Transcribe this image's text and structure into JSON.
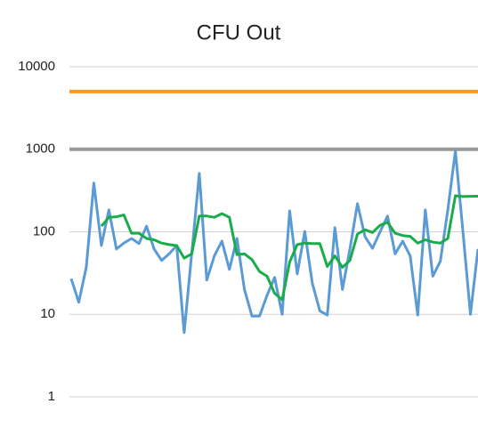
{
  "chart_data": {
    "type": "line",
    "title": "CFU Out",
    "log_scale": true,
    "grid": true,
    "ylim": [
      1,
      10000
    ],
    "yticks": [
      1,
      10,
      100,
      1000,
      10000
    ],
    "reference_lines": [
      {
        "value": 5000,
        "color": "#f59a23"
      },
      {
        "value": 1000,
        "color": "#999999"
      }
    ],
    "series": [
      {
        "color": "#5b9bd5",
        "values": [
          27,
          14,
          37,
          390,
          68,
          184,
          62,
          73,
          83,
          72,
          117,
          62,
          45,
          54,
          68,
          6,
          55,
          510,
          26,
          51,
          77,
          35,
          83,
          20,
          9.5,
          9.5,
          17,
          28,
          10,
          179,
          31,
          101,
          24,
          11,
          9.8,
          112,
          20,
          62,
          219,
          87,
          63,
          100,
          155,
          54,
          77,
          51,
          9.8,
          184,
          29,
          44,
          184,
          950,
          100,
          10,
          62
        ]
      },
      {
        "color": "#1aab4b",
        "values": [
          null,
          null,
          null,
          null,
          117,
          150,
          152,
          160,
          96,
          96,
          83,
          80,
          73,
          70,
          68,
          48,
          54,
          155,
          155,
          150,
          166,
          150,
          53,
          54,
          46,
          33,
          29,
          18,
          15,
          43,
          70,
          73,
          72,
          72,
          38,
          51,
          37,
          45,
          94,
          106,
          98,
          120,
          130,
          96,
          90,
          88,
          73,
          80,
          75,
          73,
          83,
          273,
          267,
          269,
          270
        ]
      }
    ]
  }
}
